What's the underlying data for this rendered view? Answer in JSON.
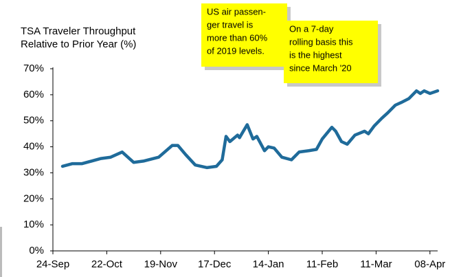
{
  "chart_data": {
    "type": "line",
    "title": [
      "TSA Traveler Throughput",
      "Relative to Prior Year (%)"
    ],
    "annotations": [
      [
        "US air passen-",
        "ger travel is",
        "more than 60%",
        "of 2019 levels."
      ],
      [
        "On a 7-day",
        "rolling basis this",
        "is the highest",
        "since March '20"
      ]
    ],
    "x": [
      5,
      10,
      15,
      20,
      25,
      30,
      36,
      42,
      47,
      55,
      62,
      65,
      69,
      74,
      80,
      85,
      88,
      90,
      92,
      96,
      97,
      101,
      104,
      106,
      110,
      112,
      115,
      119,
      124,
      128,
      133,
      137,
      140,
      145,
      147,
      150,
      153,
      157,
      162,
      164,
      167,
      171,
      174,
      178,
      181,
      185,
      189,
      191,
      193,
      196,
      200
    ],
    "series": [
      {
        "name": "TSA Traveler Throughput",
        "color": "#1f6b9a",
        "values": [
          32.5,
          33.5,
          33.5,
          34.5,
          35.5,
          36,
          38,
          34,
          34.5,
          36,
          40.5,
          40.5,
          37,
          33,
          32,
          32.5,
          35,
          44,
          42,
          44.5,
          43.5,
          48.5,
          43,
          44,
          38.5,
          40,
          39.5,
          36,
          35,
          38,
          38.5,
          39,
          43,
          47.5,
          46,
          42,
          41,
          44.5,
          46,
          45,
          48,
          51,
          53,
          56,
          57,
          58.5,
          61.5,
          60.5,
          61.5,
          60.5,
          61.5
        ]
      }
    ],
    "xlim": [
      0,
      200
    ],
    "xticks": [
      {
        "value": 0,
        "label": "24-Sep"
      },
      {
        "value": 28,
        "label": "22-Oct"
      },
      {
        "value": 56,
        "label": "19-Nov"
      },
      {
        "value": 84,
        "label": "17-Dec"
      },
      {
        "value": 112,
        "label": "14-Jan"
      },
      {
        "value": 140,
        "label": "11-Feb"
      },
      {
        "value": 168,
        "label": "11-Mar"
      },
      {
        "value": 196,
        "label": "08-Apr"
      }
    ],
    "ylim": [
      0,
      70
    ],
    "yticks": [
      {
        "value": 0,
        "label": "0%"
      },
      {
        "value": 10,
        "label": "10%"
      },
      {
        "value": 20,
        "label": "20%"
      },
      {
        "value": 30,
        "label": "30%"
      },
      {
        "value": 40,
        "label": "40%"
      },
      {
        "value": 50,
        "label": "50%"
      },
      {
        "value": 60,
        "label": "60%"
      },
      {
        "value": 70,
        "label": "70%"
      }
    ]
  }
}
